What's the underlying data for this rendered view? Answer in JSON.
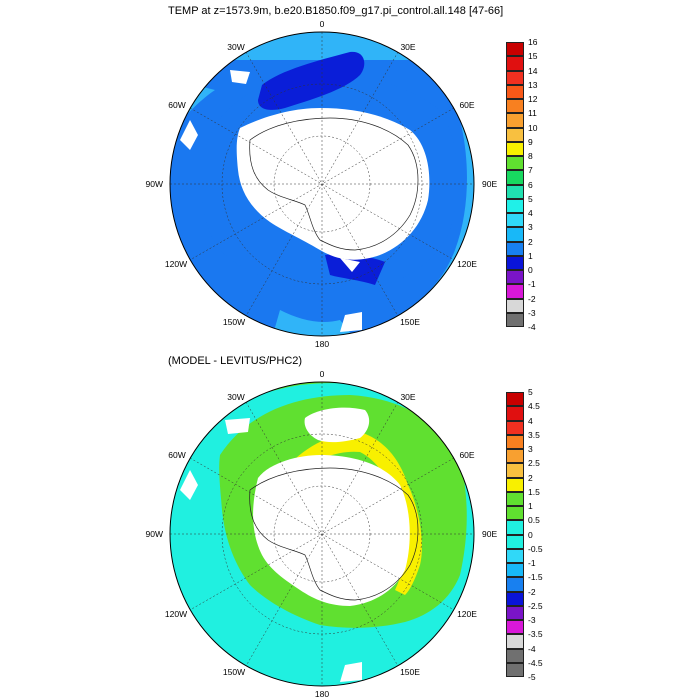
{
  "panel1": {
    "title": "TEMP at z=1573.9m, b.e20.B1850.f09_g17.pi_control.all.148 [47-66]",
    "lon_labels": [
      "0",
      "30E",
      "60E",
      "90E",
      "120E",
      "150E",
      "180",
      "150W",
      "120W",
      "90W",
      "60W",
      "30W"
    ],
    "colorbar": {
      "labels": [
        "16",
        "15",
        "14",
        "13",
        "12",
        "11",
        "10",
        "9",
        "8",
        "7",
        "6",
        "5",
        "4",
        "3",
        "2",
        "1",
        "0",
        "-1",
        "-2",
        "-3",
        "-4"
      ],
      "colors": [
        "#c80000",
        "#e01010",
        "#f03020",
        "#f85818",
        "#f88020",
        "#f8a030",
        "#f8c040",
        "#f8f000",
        "#60e030",
        "#18d860",
        "#20e0b0",
        "#20f0e8",
        "#30d8f8",
        "#18b8f8",
        "#1880f0",
        "#0a14d8",
        "#7a14c8",
        "#d818d8",
        "#d8d8d8",
        "#707070"
      ]
    }
  },
  "panel2": {
    "title": "(MODEL - LEVITUS/PHC2)",
    "lon_labels": [
      "0",
      "30E",
      "60E",
      "90E",
      "120E",
      "150E",
      "180",
      "150W",
      "120W",
      "90W",
      "60W",
      "30W"
    ],
    "colorbar": {
      "labels": [
        "5",
        "4.5",
        "4",
        "3.5",
        "3",
        "2.5",
        "2",
        "1.5",
        "1",
        "0.5",
        "0",
        "-0.5",
        "-1",
        "-1.5",
        "-2",
        "-2.5",
        "-3",
        "-3.5",
        "-4",
        "-4.5",
        "-5"
      ],
      "colors": [
        "#c80000",
        "#e01010",
        "#f03020",
        "#f88020",
        "#f8a030",
        "#f8c040",
        "#f8f000",
        "#60e030",
        "#60e030",
        "#20f0e0",
        "#20f0e0",
        "#30d8f8",
        "#18b8f8",
        "#1880f0",
        "#0a14d8",
        "#7a14c8",
        "#d818d8",
        "#d8d8d8",
        "#707070",
        "#707070"
      ]
    }
  }
}
